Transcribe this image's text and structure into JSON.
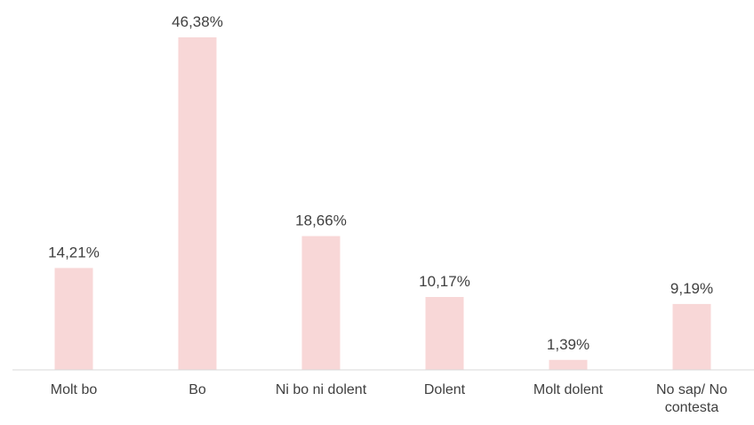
{
  "chart_data": {
    "type": "bar",
    "categories": [
      "Molt bo",
      "Bo",
      "Ni bo ni dolent",
      "Dolent",
      "Molt dolent",
      "No sap/ No contesta"
    ],
    "values": [
      14.21,
      46.38,
      18.66,
      10.17,
      1.39,
      9.19
    ],
    "value_labels": [
      "14,21%",
      "46,38%",
      "18,66%",
      "10,17%",
      "1,39%",
      "9,19%"
    ],
    "color": "#f8d7d7"
  }
}
